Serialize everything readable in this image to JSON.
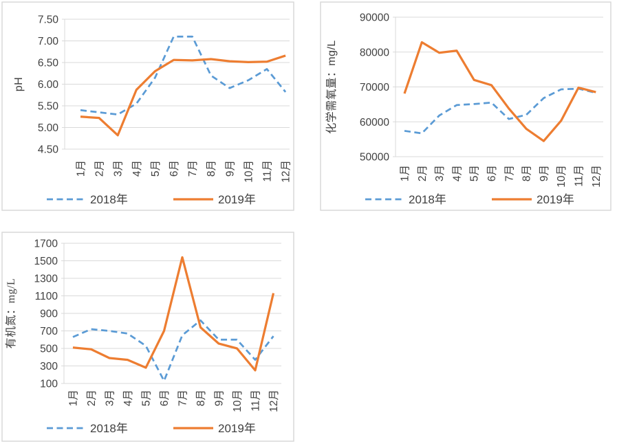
{
  "style": {
    "background": "#ffffff",
    "panel_border_color": "#d9d9d9",
    "grid_color": "#d9d9d9",
    "axis_color": "#bfbfbf",
    "text_color": "#404040",
    "series_2018_color": "#5b9bd5",
    "series_2019_color": "#ed7d31"
  },
  "chart_data": [
    {
      "type": "line",
      "title": "",
      "xlabel": "",
      "ylabel": "pH",
      "ylabel_unit_serif": false,
      "ylim": [
        4.5,
        7.5
      ],
      "ytick_step": 0.5,
      "ytick_labels": [
        "7.50",
        "7.00",
        "6.50",
        "6.00",
        "5.50",
        "5.00",
        "4.50"
      ],
      "grid": true,
      "legend_position": "bottom",
      "categories": [
        "1月",
        "2月",
        "3月",
        "4月",
        "5月",
        "6月",
        "7月",
        "8月",
        "9月",
        "10月",
        "11月",
        "12月"
      ],
      "series": [
        {
          "name": "2018年",
          "color": "#5b9bd5",
          "line_style": "dashed",
          "values": [
            5.4,
            5.35,
            5.3,
            5.55,
            6.15,
            7.1,
            7.1,
            6.2,
            5.91,
            6.09,
            6.35,
            5.82
          ]
        },
        {
          "name": "2019年",
          "color": "#ed7d31",
          "line_style": "solid",
          "values": [
            5.25,
            5.22,
            4.82,
            5.87,
            6.3,
            6.56,
            6.55,
            6.58,
            6.53,
            6.51,
            6.52,
            6.66
          ]
        }
      ]
    },
    {
      "type": "line",
      "title": "",
      "xlabel": "",
      "ylabel": "化学需氧量：mg/L",
      "ylabel_unit_serif": false,
      "ylim": [
        50000,
        90000
      ],
      "ytick_step": 10000,
      "ytick_labels": [
        "90000",
        "80000",
        "70000",
        "60000",
        "50000"
      ],
      "grid": true,
      "legend_position": "bottom",
      "categories": [
        "1月",
        "2月",
        "3月",
        "4月",
        "5月",
        "6月",
        "7月",
        "8月",
        "9月",
        "10月",
        "11月",
        "12月"
      ],
      "series": [
        {
          "name": "2018年",
          "color": "#5b9bd5",
          "line_style": "dashed",
          "values": [
            57400,
            56700,
            61800,
            64800,
            65100,
            65500,
            60800,
            62000,
            66800,
            69300,
            69500,
            68300
          ]
        },
        {
          "name": "2019年",
          "color": "#ed7d31",
          "line_style": "solid",
          "values": [
            68100,
            82800,
            79800,
            80400,
            72000,
            70500,
            63800,
            58000,
            54500,
            60300,
            69800,
            68500
          ]
        }
      ]
    },
    {
      "type": "line",
      "title": "",
      "xlabel": "",
      "ylabel": "有机氮：mg/L",
      "ylabel_unit_serif": true,
      "ylim": [
        100,
        1700
      ],
      "ytick_step": 200,
      "ytick_labels": [
        "1700",
        "1500",
        "1300",
        "1100",
        "900",
        "700",
        "500",
        "300",
        "100"
      ],
      "grid": true,
      "legend_position": "bottom",
      "categories": [
        "1月",
        "2月",
        "3月",
        "4月",
        "5月",
        "6月",
        "7月",
        "8月",
        "9月",
        "10月",
        "11月",
        "12月"
      ],
      "series": [
        {
          "name": "2018年",
          "color": "#5b9bd5",
          "line_style": "dashed",
          "values": [
            630,
            720,
            700,
            670,
            530,
            130,
            650,
            820,
            600,
            600,
            370,
            640
          ]
        },
        {
          "name": "2019年",
          "color": "#ed7d31",
          "line_style": "solid",
          "values": [
            510,
            490,
            390,
            370,
            280,
            700,
            1540,
            740,
            555,
            500,
            250,
            1130
          ]
        }
      ]
    }
  ]
}
